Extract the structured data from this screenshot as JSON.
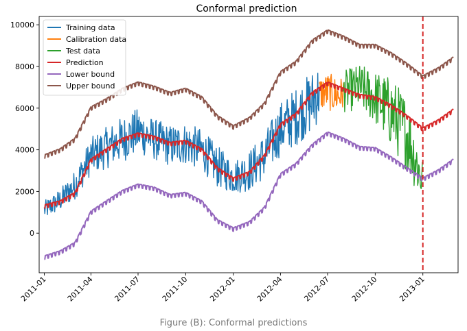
{
  "caption": "Figure (B): Conformal predictions",
  "chart_data": {
    "type": "line",
    "title": "Conformal prediction",
    "xlabel": "",
    "ylabel": "",
    "x_range": [
      "2010-12-22",
      "2013-03-10"
    ],
    "ylim": [
      -1900,
      10400
    ],
    "grid": false,
    "legend_position": "top-left",
    "x_ticks": [
      "2011-01",
      "2011-04",
      "2011-07",
      "2011-10",
      "2012-01",
      "2012-04",
      "2012-07",
      "2012-10",
      "2013-01"
    ],
    "y_ticks": [
      0,
      2000,
      4000,
      6000,
      8000,
      10000
    ],
    "vline": {
      "x": "2013-01-01",
      "color": "#d62728",
      "style": "dashed"
    },
    "series": [
      {
        "name": "Training data",
        "color": "#1f77b4",
        "kind": "noisy",
        "x": [
          "2011-01-01",
          "2011-02-01",
          "2011-03-01",
          "2011-04-01",
          "2011-05-01",
          "2011-06-01",
          "2011-07-01",
          "2011-08-01",
          "2011-09-01",
          "2011-10-01",
          "2011-11-01",
          "2011-12-01",
          "2012-01-01",
          "2012-02-01",
          "2012-03-01",
          "2012-04-01",
          "2012-05-01",
          "2012-06-01",
          "2012-06-15"
        ],
        "y": [
          1100,
          1600,
          2300,
          3700,
          4100,
          4500,
          4900,
          4500,
          4200,
          4300,
          4000,
          3200,
          2700,
          3000,
          3700,
          5000,
          5600,
          6300,
          6800
        ],
        "spread": [
          450,
          550,
          700,
          900,
          1000,
          1100,
          1100,
          1000,
          1000,
          1000,
          1000,
          1000,
          800,
          1000,
          1100,
          1300,
          1400,
          1500,
          1400
        ]
      },
      {
        "name": "Calibration data",
        "color": "#ff7f0e",
        "kind": "noisy",
        "x": [
          "2012-06-15",
          "2012-07-01",
          "2012-07-20",
          "2012-08-01"
        ],
        "y": [
          6700,
          6800,
          6600,
          6700
        ],
        "spread": [
          800,
          900,
          900,
          800
        ]
      },
      {
        "name": "Test data",
        "color": "#2ca02c",
        "kind": "noisy",
        "x": [
          "2012-08-01",
          "2012-09-01",
          "2012-10-01",
          "2012-11-01",
          "2012-12-01",
          "2012-12-31"
        ],
        "y": [
          6800,
          7000,
          6500,
          5800,
          4800,
          2500
        ],
        "spread": [
          1000,
          1100,
          1300,
          1700,
          1800,
          1200
        ]
      },
      {
        "name": "Prediction",
        "color": "#d62728",
        "kind": "smooth",
        "x": [
          "2011-01-01",
          "2011-02-01",
          "2011-03-01",
          "2011-04-01",
          "2011-05-01",
          "2011-06-01",
          "2011-07-01",
          "2011-08-01",
          "2011-09-01",
          "2011-10-01",
          "2011-11-01",
          "2011-12-01",
          "2012-01-01",
          "2012-02-01",
          "2012-03-01",
          "2012-04-01",
          "2012-05-01",
          "2012-06-01",
          "2012-07-01",
          "2012-08-01",
          "2012-09-01",
          "2012-10-01",
          "2012-11-01",
          "2012-12-01",
          "2013-01-01",
          "2013-02-01",
          "2013-03-01"
        ],
        "y": [
          1300,
          1500,
          1900,
          3500,
          4000,
          4500,
          4750,
          4600,
          4300,
          4400,
          4000,
          3100,
          2600,
          2900,
          3700,
          5200,
          5700,
          6700,
          7200,
          6900,
          6600,
          6500,
          6100,
          5600,
          5000,
          5400,
          5900
        ]
      },
      {
        "name": "Lower bound",
        "color": "#9467bd",
        "kind": "smooth",
        "x": [
          "2011-01-01",
          "2011-02-01",
          "2011-03-01",
          "2011-04-01",
          "2011-05-01",
          "2011-06-01",
          "2011-07-01",
          "2011-08-01",
          "2011-09-01",
          "2011-10-01",
          "2011-11-01",
          "2011-12-01",
          "2012-01-01",
          "2012-02-01",
          "2012-03-01",
          "2012-04-01",
          "2012-05-01",
          "2012-06-01",
          "2012-07-01",
          "2012-08-01",
          "2012-09-01",
          "2012-10-01",
          "2012-11-01",
          "2012-12-01",
          "2013-01-01",
          "2013-02-01",
          "2013-03-01"
        ],
        "y": [
          -1150,
          -900,
          -500,
          1000,
          1500,
          2000,
          2300,
          2150,
          1800,
          1900,
          1500,
          600,
          200,
          500,
          1200,
          2800,
          3300,
          4200,
          4800,
          4500,
          4100,
          4050,
          3600,
          3100,
          2600,
          3000,
          3500
        ]
      },
      {
        "name": "Upper bound",
        "color": "#8c564b",
        "kind": "smooth",
        "x": [
          "2011-01-01",
          "2011-02-01",
          "2011-03-01",
          "2011-04-01",
          "2011-05-01",
          "2011-06-01",
          "2011-07-01",
          "2011-08-01",
          "2011-09-01",
          "2011-10-01",
          "2011-11-01",
          "2011-12-01",
          "2012-01-01",
          "2012-02-01",
          "2012-03-01",
          "2012-04-01",
          "2012-05-01",
          "2012-06-01",
          "2012-07-01",
          "2012-08-01",
          "2012-09-01",
          "2012-10-01",
          "2012-11-01",
          "2012-12-01",
          "2013-01-01",
          "2013-02-01",
          "2013-03-01"
        ],
        "y": [
          3700,
          4000,
          4500,
          6000,
          6400,
          6900,
          7200,
          7000,
          6700,
          6900,
          6500,
          5600,
          5100,
          5500,
          6200,
          7700,
          8200,
          9200,
          9700,
          9400,
          9000,
          9000,
          8600,
          8100,
          7500,
          7900,
          8400
        ]
      }
    ]
  }
}
